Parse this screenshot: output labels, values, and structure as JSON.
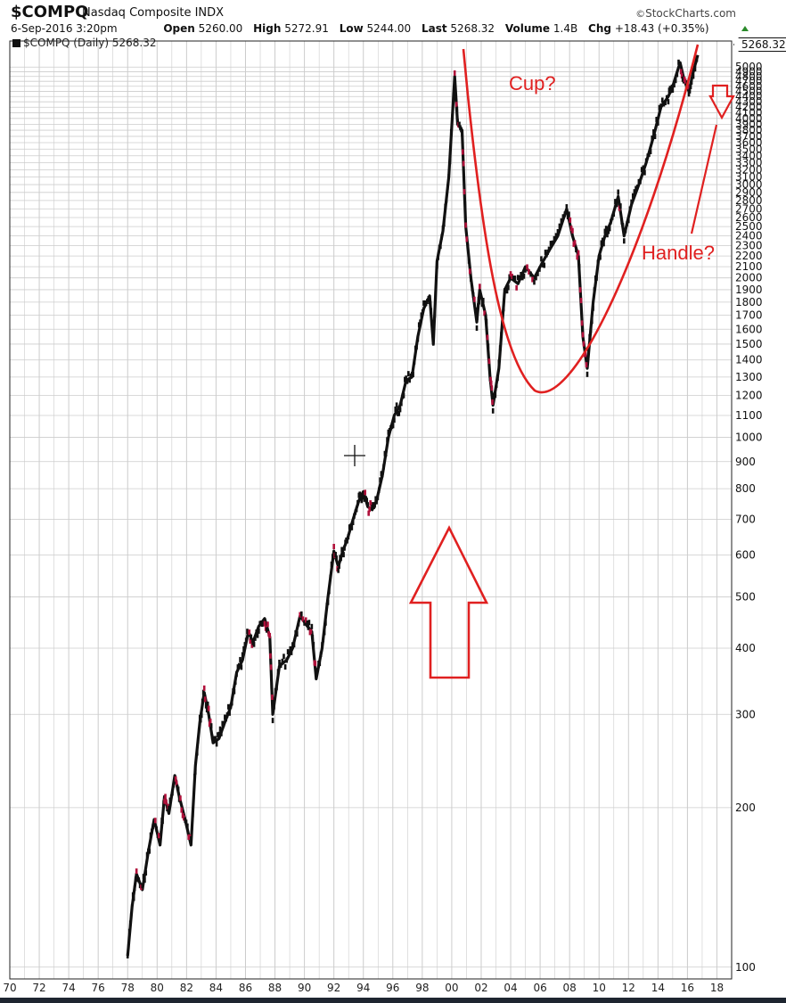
{
  "header": {
    "symbol": "$COMPQ",
    "description": "Nasdaq Composite INDX",
    "brand": "StockCharts.com",
    "brand_mark": "©",
    "date": "6-Sep-2016 3:20pm",
    "open_label": "Open",
    "open": "5260.00",
    "high_label": "High",
    "high": "5272.91",
    "low_label": "Low",
    "low": "5244.00",
    "last_label": "Last",
    "last": "5268.32",
    "volume_label": "Volume",
    "volume": "1.4B",
    "chg_label": "Chg",
    "chg": "+18.43 (+0.35%)"
  },
  "legend": {
    "text": "$COMPQ (Daily) 5268.32"
  },
  "last_price_tag": "5268.32",
  "annotations": {
    "cup": "Cup?",
    "handle": "Handle?"
  },
  "colors": {
    "price": "#111111",
    "down": "#b0103a",
    "annotation": "#e02020",
    "grid": "#cccccc"
  },
  "chart_data": {
    "type": "line",
    "title": "",
    "xlabel": "",
    "ylabel": "",
    "y_scale": "log",
    "ylim": [
      95,
      5600
    ],
    "xlim": [
      1970,
      2019
    ],
    "x_tick_labels": [
      "70",
      "72",
      "74",
      "76",
      "78",
      "80",
      "82",
      "84",
      "86",
      "88",
      "90",
      "92",
      "94",
      "96",
      "98",
      "00",
      "02",
      "04",
      "06",
      "08",
      "10",
      "12",
      "14",
      "16",
      "18"
    ],
    "y_ticks": [
      100,
      200,
      300,
      400,
      500,
      600,
      700,
      800,
      900,
      1000,
      1100,
      1200,
      1300,
      1400,
      1500,
      1600,
      1700,
      1800,
      1900,
      2000,
      2100,
      2200,
      2300,
      2400,
      2500,
      2600,
      2700,
      2800,
      2900,
      3000,
      3100,
      3200,
      3300,
      3400,
      3500,
      3600,
      3700,
      3800,
      3900,
      4000,
      4100,
      4200,
      4300,
      4400,
      4500,
      4600,
      4700,
      4800,
      4900,
      5000
    ],
    "grid": true,
    "series": [
      {
        "x": [
          1978.0,
          1978.3,
          1978.6,
          1979.0,
          1979.4,
          1979.8,
          1980.2,
          1980.5,
          1980.8,
          1981.2,
          1981.5,
          1981.9,
          1982.3,
          1982.6,
          1982.9,
          1983.2,
          1983.5,
          1983.8,
          1984.2,
          1984.6,
          1985.0,
          1985.4,
          1985.8,
          1986.2,
          1986.5,
          1986.9,
          1987.3,
          1987.65,
          1987.85,
          1988.3,
          1988.8,
          1989.2,
          1989.7,
          1990.2,
          1990.5,
          1990.8,
          1991.2,
          1991.6,
          1992.0,
          1992.3,
          1992.6,
          1992.9,
          1993.3,
          1993.7,
          1994.0,
          1994.3,
          1994.6,
          1994.9,
          1995.3,
          1995.7,
          1996.1,
          1996.5,
          1996.9,
          1997.3,
          1997.7,
          1998.1,
          1998.5,
          1998.75,
          1999.0,
          1999.4,
          1999.8,
          2000.2,
          2000.4,
          2000.7,
          2000.95,
          2001.3,
          2001.7,
          2001.9,
          2002.3,
          2002.6,
          2002.8,
          2003.2,
          2003.6,
          2004.0,
          2004.5,
          2005.0,
          2005.6,
          2006.2,
          2006.6,
          2007.2,
          2007.8,
          2008.2,
          2008.6,
          2008.9,
          2009.2,
          2009.6,
          2010.0,
          2010.4,
          2010.8,
          2011.3,
          2011.7,
          2012.2,
          2012.7,
          2013.2,
          2013.7,
          2014.2,
          2014.7,
          2015.0,
          2015.5,
          2015.8,
          2016.1,
          2016.4,
          2016.7
        ],
        "y": [
          105,
          130,
          150,
          140,
          165,
          190,
          170,
          210,
          195,
          230,
          210,
          190,
          170,
          240,
          290,
          330,
          300,
          265,
          270,
          290,
          310,
          360,
          380,
          430,
          410,
          440,
          455,
          420,
          300,
          370,
          380,
          400,
          460,
          440,
          430,
          350,
          400,
          500,
          610,
          570,
          610,
          640,
          700,
          760,
          790,
          740,
          730,
          760,
          850,
          1000,
          1100,
          1150,
          1280,
          1300,
          1550,
          1750,
          1850,
          1500,
          2150,
          2450,
          3100,
          4800,
          3900,
          3800,
          2500,
          2000,
          1650,
          1900,
          1700,
          1300,
          1150,
          1350,
          1900,
          2000,
          1950,
          2100,
          2000,
          2150,
          2250,
          2400,
          2700,
          2400,
          2200,
          1550,
          1350,
          1800,
          2200,
          2400,
          2550,
          2850,
          2400,
          2750,
          3000,
          3300,
          3700,
          4200,
          4400,
          4600,
          5100,
          4700,
          4500,
          4900,
          5268
        ]
      }
    ]
  }
}
